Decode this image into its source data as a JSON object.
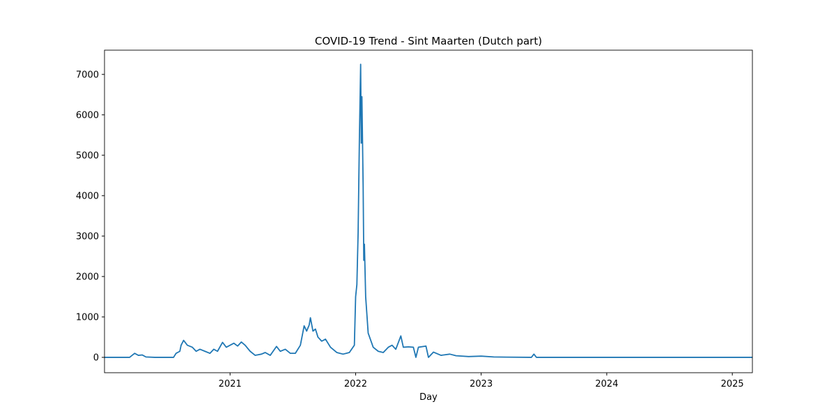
{
  "chart_data": {
    "type": "line",
    "title": "COVID-19 Trend - Sint Maarten (Dutch part)",
    "xlabel": "Day",
    "x": [
      2020.0,
      2020.2,
      2020.24,
      2020.27,
      2020.3,
      2020.33,
      2020.4,
      2020.55,
      2020.57,
      2020.6,
      2020.61,
      2020.63,
      2020.66,
      2020.7,
      2020.73,
      2020.76,
      2020.8,
      2020.84,
      2020.87,
      2020.9,
      2020.94,
      2020.97,
      2021.0,
      2021.03,
      2021.06,
      2021.09,
      2021.12,
      2021.16,
      2021.2,
      2021.25,
      2021.28,
      2021.32,
      2021.37,
      2021.4,
      2021.44,
      2021.48,
      2021.52,
      2021.56,
      2021.59,
      2021.61,
      2021.63,
      2021.64,
      2021.66,
      2021.68,
      2021.7,
      2021.73,
      2021.76,
      2021.8,
      2021.85,
      2021.9,
      2021.95,
      2021.99,
      2022.0,
      2022.01,
      2022.02,
      2022.03,
      2022.04,
      2022.045,
      2022.05,
      2022.06,
      2022.065,
      2022.07,
      2022.08,
      2022.1,
      2022.14,
      2022.18,
      2022.22,
      2022.26,
      2022.29,
      2022.32,
      2022.36,
      2022.38,
      2022.42,
      2022.46,
      2022.48,
      2022.5,
      2022.56,
      2022.58,
      2022.62,
      2022.68,
      2022.75,
      2022.8,
      2022.9,
      2023.0,
      2023.1,
      2023.2,
      2023.4,
      2023.42,
      2023.44,
      2023.5,
      2024.0,
      2025.16
    ],
    "series": [
      {
        "color": "#1f77b4",
        "values": [
          0,
          0,
          100,
          50,
          60,
          10,
          0,
          0,
          100,
          150,
          300,
          420,
          300,
          250,
          150,
          200,
          150,
          100,
          200,
          150,
          370,
          250,
          300,
          350,
          280,
          380,
          300,
          150,
          50,
          80,
          120,
          50,
          270,
          150,
          200,
          100,
          100,
          300,
          780,
          650,
          800,
          980,
          650,
          700,
          500,
          400,
          450,
          250,
          120,
          80,
          120,
          300,
          1500,
          1800,
          3100,
          5400,
          7250,
          5300,
          6450,
          4200,
          2400,
          2800,
          1500,
          600,
          250,
          150,
          120,
          250,
          300,
          200,
          530,
          250,
          260,
          250,
          0,
          250,
          280,
          0,
          130,
          50,
          80,
          40,
          20,
          30,
          10,
          5,
          0,
          80,
          0,
          0,
          0,
          0
        ]
      }
    ],
    "xlim": [
      2020.0,
      2025.16
    ],
    "xticks": [
      2021,
      2022,
      2023,
      2024,
      2025
    ],
    "ylim": [
      -380,
      7600
    ],
    "yticks": [
      0,
      1000,
      2000,
      3000,
      4000,
      5000,
      6000,
      7000
    ],
    "grid": false
  }
}
